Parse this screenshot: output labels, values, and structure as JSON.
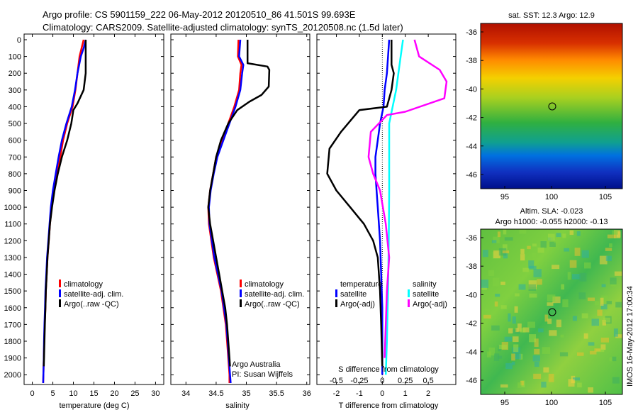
{
  "header": {
    "line1": "Argo profile: CS 5901159_222 06-May-2012 20120510_86 41.501S 99.693E",
    "line2": "Climatology: CARS2009. Satellite-adjusted climatology: synTS_20120508.nc (1.5d later)"
  },
  "colors": {
    "climatology": "#ff0000",
    "satellite": "#0000ff",
    "argo": "#000000",
    "sal_satellite": "#00ffff",
    "sal_argo": "#ff00ff"
  },
  "depth_ticks": [
    "0",
    "100",
    "200",
    "300",
    "400",
    "500",
    "600",
    "700",
    "800",
    "900",
    "1000",
    "1100",
    "1200",
    "1300",
    "1400",
    "1500",
    "1600",
    "1700",
    "1800",
    "1900",
    "2000"
  ],
  "chart_data": [
    {
      "type": "line",
      "xlabel": "temperature (deg C)",
      "xticks": [
        "0",
        "5",
        "10",
        "15",
        "20",
        "25",
        "30"
      ],
      "xlim": [
        -2,
        32
      ],
      "ylim": [
        2050,
        0
      ],
      "legend": [
        "climatology",
        "satellite-adj. clim.",
        "Argo(..raw -QC)"
      ],
      "series": [
        {
          "name": "climatology",
          "points": [
            [
              12.5,
              0
            ],
            [
              12,
              50
            ],
            [
              11.5,
              100
            ],
            [
              11,
              200
            ],
            [
              10.5,
              300
            ],
            [
              9.8,
              400
            ],
            [
              8.5,
              500
            ],
            [
              7.5,
              600
            ],
            [
              6.8,
              700
            ],
            [
              6,
              800
            ],
            [
              5.3,
              900
            ],
            [
              4.7,
              1000
            ],
            [
              4.3,
              1100
            ],
            [
              4,
              1200
            ],
            [
              3.7,
              1300
            ],
            [
              3.5,
              1400
            ],
            [
              3.3,
              1500
            ],
            [
              3.2,
              1600
            ],
            [
              3,
              1700
            ],
            [
              2.9,
              1800
            ],
            [
              2.8,
              1900
            ],
            [
              2.7,
              2000
            ],
            [
              2.65,
              2050
            ]
          ]
        },
        {
          "name": "satellite-adj. clim.",
          "points": [
            [
              13,
              0
            ],
            [
              12.5,
              50
            ],
            [
              11.8,
              100
            ],
            [
              11,
              200
            ],
            [
              10.4,
              300
            ],
            [
              9.6,
              400
            ],
            [
              8.3,
              500
            ],
            [
              7.2,
              600
            ],
            [
              6.4,
              700
            ],
            [
              5.7,
              800
            ],
            [
              5,
              900
            ],
            [
              4.5,
              1000
            ],
            [
              4.2,
              1100
            ],
            [
              3.9,
              1200
            ],
            [
              3.6,
              1300
            ],
            [
              3.4,
              1400
            ],
            [
              3.2,
              1500
            ],
            [
              3.1,
              1600
            ],
            [
              2.95,
              1700
            ],
            [
              2.85,
              1800
            ],
            [
              2.8,
              1900
            ],
            [
              2.7,
              2000
            ],
            [
              2.65,
              2050
            ]
          ]
        },
        {
          "name": "Argo(..raw -QC)",
          "points": [
            [
              13,
              0
            ],
            [
              13,
              150
            ],
            [
              13,
              200
            ],
            [
              12.5,
              300
            ],
            [
              11,
              380
            ],
            [
              10,
              420
            ],
            [
              9.5,
              500
            ],
            [
              8.5,
              600
            ],
            [
              7.2,
              700
            ],
            [
              6.2,
              800
            ],
            [
              5.4,
              900
            ],
            [
              4.8,
              1000
            ],
            [
              4.3,
              1100
            ],
            [
              4,
              1200
            ],
            [
              3.7,
              1300
            ],
            [
              3.5,
              1400
            ],
            [
              3.3,
              1500
            ],
            [
              3.2,
              1600
            ],
            [
              3.05,
              1700
            ],
            [
              2.95,
              1800
            ],
            [
              2.85,
              1900
            ],
            [
              2.8,
              1950
            ]
          ]
        }
      ]
    },
    {
      "type": "line",
      "xlabel": "salinity",
      "xticks": [
        "34",
        "34.5",
        "35",
        "35.5",
        "36"
      ],
      "xlim": [
        33.75,
        36.05
      ],
      "ylim": [
        2050,
        0
      ],
      "legend": [
        "climatology",
        "satellite-adj. clim.",
        "Argo(..raw -QC)"
      ],
      "annotation": [
        "Argo Australia",
        "PI: Susan Wijffels"
      ],
      "series": [
        {
          "name": "climatology",
          "points": [
            [
              34.87,
              0
            ],
            [
              34.86,
              100
            ],
            [
              34.92,
              150
            ],
            [
              34.9,
              200
            ],
            [
              34.88,
              300
            ],
            [
              34.8,
              400
            ],
            [
              34.7,
              500
            ],
            [
              34.6,
              600
            ],
            [
              34.5,
              700
            ],
            [
              34.45,
              800
            ],
            [
              34.4,
              900
            ],
            [
              34.37,
              1000
            ],
            [
              34.38,
              1100
            ],
            [
              34.42,
              1200
            ],
            [
              34.46,
              1300
            ],
            [
              34.52,
              1400
            ],
            [
              34.58,
              1500
            ],
            [
              34.62,
              1600
            ],
            [
              34.66,
              1700
            ],
            [
              34.68,
              1800
            ],
            [
              34.7,
              1900
            ],
            [
              34.72,
              2000
            ],
            [
              34.72,
              2050
            ]
          ]
        },
        {
          "name": "satellite-adj. clim.",
          "points": [
            [
              34.9,
              0
            ],
            [
              34.88,
              100
            ],
            [
              34.95,
              150
            ],
            [
              34.93,
              200
            ],
            [
              34.9,
              300
            ],
            [
              34.82,
              400
            ],
            [
              34.72,
              500
            ],
            [
              34.62,
              600
            ],
            [
              34.52,
              700
            ],
            [
              34.46,
              800
            ],
            [
              34.41,
              900
            ],
            [
              34.38,
              1000
            ],
            [
              34.39,
              1100
            ],
            [
              34.43,
              1200
            ],
            [
              34.47,
              1300
            ],
            [
              34.53,
              1400
            ],
            [
              34.59,
              1500
            ],
            [
              34.63,
              1600
            ],
            [
              34.67,
              1700
            ],
            [
              34.69,
              1800
            ],
            [
              34.71,
              1900
            ],
            [
              34.73,
              2000
            ],
            [
              34.74,
              2050
            ]
          ]
        },
        {
          "name": "Argo(..raw -QC)",
          "points": [
            [
              35.02,
              0
            ],
            [
              35.02,
              140
            ],
            [
              35.35,
              160
            ],
            [
              35.38,
              180
            ],
            [
              35.37,
              280
            ],
            [
              35.25,
              330
            ],
            [
              35.05,
              370
            ],
            [
              34.85,
              420
            ],
            [
              34.7,
              500
            ],
            [
              34.58,
              600
            ],
            [
              34.5,
              700
            ],
            [
              34.45,
              800
            ],
            [
              34.4,
              900
            ],
            [
              34.37,
              1000
            ],
            [
              34.4,
              1100
            ],
            [
              34.45,
              1200
            ],
            [
              34.5,
              1300
            ],
            [
              34.55,
              1400
            ],
            [
              34.6,
              1500
            ],
            [
              34.65,
              1600
            ],
            [
              34.68,
              1700
            ],
            [
              34.7,
              1800
            ],
            [
              34.72,
              1900
            ],
            [
              34.73,
              1950
            ]
          ]
        }
      ]
    },
    {
      "type": "line",
      "xlabel": "T difference from climatology",
      "xlabel_top": "S difference from climatology",
      "xticks": [
        "-2",
        "-1",
        "0",
        "1",
        "2"
      ],
      "xticks_top": [
        "-0.5",
        "-0.25",
        "0",
        "0.25",
        "0.5"
      ],
      "xlim": [
        -2.85,
        3.2
      ],
      "ylim": [
        2050,
        0
      ],
      "legend_left_title": "temperature",
      "legend_right_title": "salinity",
      "legend_left": [
        "satellite",
        "Argo(-adj)"
      ],
      "legend_right": [
        "satellite",
        "Argo(-adj)"
      ],
      "series": [
        {
          "name": "T satellite",
          "points": [
            [
              0.3,
              0
            ],
            [
              0.25,
              100
            ],
            [
              0.2,
              200
            ],
            [
              0.1,
              300
            ],
            [
              0.05,
              400
            ],
            [
              -0.1,
              500
            ],
            [
              -0.2,
              600
            ],
            [
              -0.3,
              700
            ],
            [
              -0.3,
              800
            ],
            [
              -0.25,
              900
            ],
            [
              -0.2,
              1000
            ],
            [
              -0.1,
              1200
            ],
            [
              -0.05,
              1400
            ],
            [
              0,
              1600
            ],
            [
              0,
              2000
            ]
          ]
        },
        {
          "name": "T Argo(-adj)",
          "points": [
            [
              0.4,
              0
            ],
            [
              0.4,
              150
            ],
            [
              0.5,
              200
            ],
            [
              0.4,
              300
            ],
            [
              0.2,
              400
            ],
            [
              -1,
              420
            ],
            [
              -1.8,
              550
            ],
            [
              -2.3,
              650
            ],
            [
              -2.4,
              800
            ],
            [
              -2,
              900
            ],
            [
              -1.4,
              1000
            ],
            [
              -0.8,
              1100
            ],
            [
              -0.4,
              1200
            ],
            [
              -0.2,
              1300
            ],
            [
              -0.1,
              1500
            ],
            [
              -0.05,
              1700
            ],
            [
              0,
              1950
            ]
          ]
        },
        {
          "name": "S satellite",
          "points": [
            [
              0.9,
              0
            ],
            [
              0.8,
              100
            ],
            [
              0.7,
              200
            ],
            [
              0.6,
              300
            ],
            [
              0.45,
              400
            ],
            [
              0.3,
              500
            ],
            [
              0.3,
              700
            ],
            [
              0.3,
              900
            ],
            [
              0.28,
              1200
            ],
            [
              0.25,
              1500
            ],
            [
              0.2,
              1800
            ],
            [
              0.15,
              2000
            ]
          ]
        },
        {
          "name": "S Argo(-adj)",
          "points": [
            [
              1.4,
              0
            ],
            [
              1.6,
              100
            ],
            [
              2.5,
              180
            ],
            [
              2.8,
              250
            ],
            [
              2.7,
              350
            ],
            [
              1,
              430
            ],
            [
              0.2,
              450
            ],
            [
              -0.5,
              550
            ],
            [
              -0.6,
              700
            ],
            [
              -0.4,
              800
            ],
            [
              -0.1,
              900
            ],
            [
              0.15,
              1100
            ],
            [
              0.3,
              1300
            ],
            [
              0.2,
              1500
            ],
            [
              0.15,
              1700
            ],
            [
              0.1,
              1900
            ]
          ]
        }
      ]
    }
  ],
  "map1": {
    "title": "sat. SST: 12.3 Argo: 12.9",
    "yticks": [
      "-36",
      "-38",
      "-40",
      "-42",
      "-44",
      "-46"
    ],
    "xticks": [
      "95",
      "100",
      "105"
    ]
  },
  "map2": {
    "title1": "Altim. SLA: -0.023",
    "title2": "Argo h1000: -0.055 h2000: -0.13",
    "yticks": [
      "-36",
      "-38",
      "-40",
      "-42",
      "-44",
      "-46"
    ],
    "xticks": [
      "95",
      "100",
      "105"
    ]
  },
  "footer_vertical": "IMOS 16-May-2012 17:00:34"
}
